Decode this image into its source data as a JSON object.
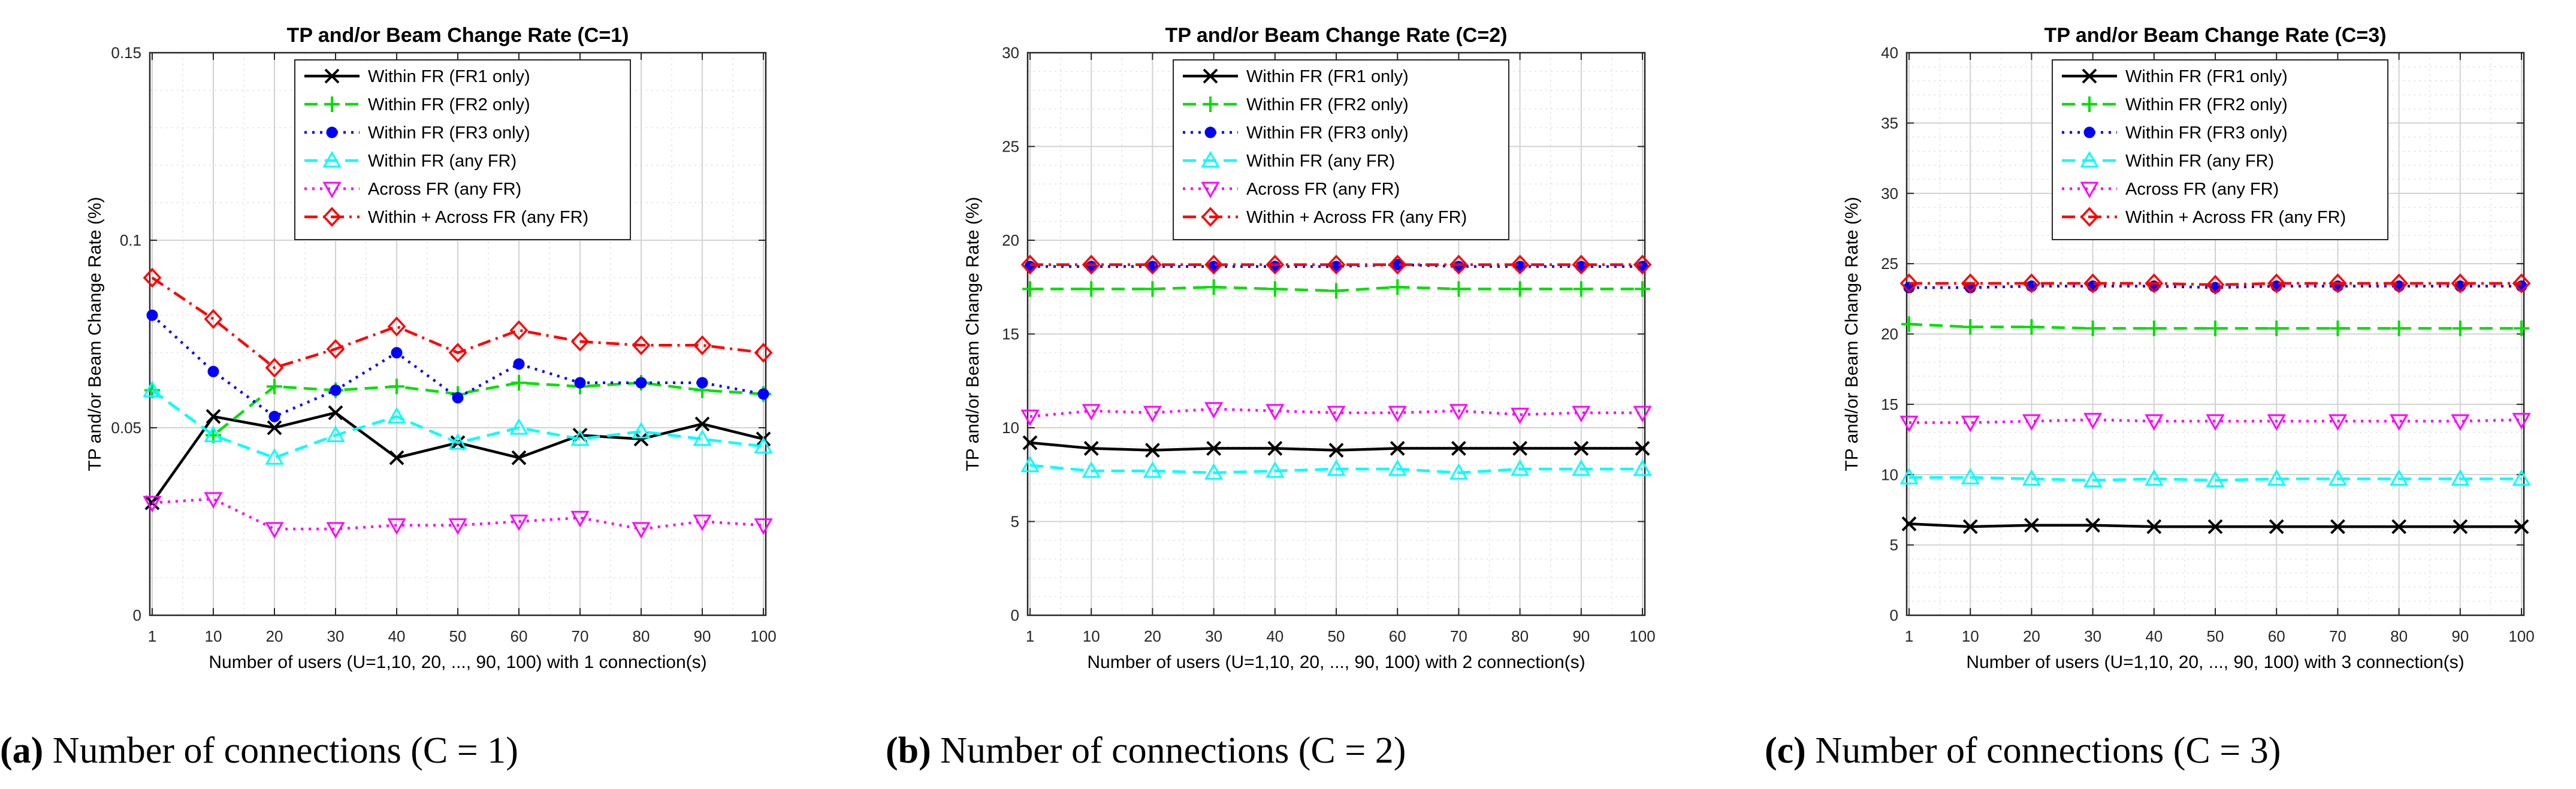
{
  "chart_data": [
    {
      "type": "line",
      "title": "TP and/or Beam Change Rate (C=1)",
      "xlabel": "Number of users (U=1,10, 20, ..., 90, 100) with 1 connection(s)",
      "ylabel": "TP and/or Beam Change Rate (%)",
      "categories": [
        "1",
        "10",
        "20",
        "30",
        "40",
        "50",
        "60",
        "70",
        "80",
        "90",
        "100"
      ],
      "ylim": [
        0,
        0.15
      ],
      "yticks": [
        0,
        0.05,
        0.1,
        0.15
      ],
      "ytick_labels": [
        "0",
        "0.05",
        "0.1",
        "0.15"
      ],
      "grid": true,
      "legend_position": "top-center",
      "series": [
        {
          "name": "Within FR (FR1 only)",
          "color": "#000000",
          "marker": "x",
          "dash": "solid",
          "values": [
            0.03,
            0.053,
            0.05,
            0.054,
            0.042,
            0.046,
            0.042,
            0.048,
            0.047,
            0.051,
            0.047
          ]
        },
        {
          "name": "Within FR (FR2 only)",
          "color": "#00e000",
          "marker": "plus",
          "dash": "dash",
          "values": [
            0.06,
            0.048,
            0.061,
            0.06,
            0.061,
            0.059,
            0.062,
            0.061,
            0.062,
            0.06,
            0.059
          ]
        },
        {
          "name": "Within FR (FR3 only)",
          "color": "#0000ff",
          "marker": "dot",
          "dash": "dot",
          "values": [
            0.08,
            0.065,
            0.053,
            0.06,
            0.07,
            0.058,
            0.067,
            0.062,
            0.062,
            0.062,
            0.059
          ]
        },
        {
          "name": "Within FR (any FR)",
          "color": "#00ffff",
          "marker": "triangle-up",
          "dash": "dash",
          "values": [
            0.06,
            0.048,
            0.042,
            0.048,
            0.053,
            0.046,
            0.05,
            0.047,
            0.049,
            0.047,
            0.045
          ]
        },
        {
          "name": "Across FR (any FR)",
          "color": "#ff00ff",
          "marker": "triangle-down",
          "dash": "dot",
          "values": [
            0.03,
            0.031,
            0.023,
            0.023,
            0.024,
            0.024,
            0.025,
            0.026,
            0.023,
            0.025,
            0.024
          ]
        },
        {
          "name": "Within + Across FR (any FR)",
          "color": "#ff0000",
          "marker": "diamond",
          "dash": "dashdot",
          "values": [
            0.09,
            0.079,
            0.066,
            0.071,
            0.077,
            0.07,
            0.076,
            0.073,
            0.072,
            0.072,
            0.07
          ]
        }
      ]
    },
    {
      "type": "line",
      "title": "TP and/or Beam Change Rate (C=2)",
      "xlabel": "Number of users (U=1,10, 20, ..., 90, 100) with 2 connection(s)",
      "ylabel": "TP and/or Beam Change Rate (%)",
      "categories": [
        "1",
        "10",
        "20",
        "30",
        "40",
        "50",
        "60",
        "70",
        "80",
        "90",
        "100"
      ],
      "ylim": [
        0,
        30
      ],
      "yticks": [
        0,
        5,
        10,
        15,
        20,
        25,
        30
      ],
      "ytick_labels": [
        "0",
        "5",
        "10",
        "15",
        "20",
        "25",
        "30"
      ],
      "grid": true,
      "legend_position": "top-center",
      "series": [
        {
          "name": "Within FR (FR1 only)",
          "color": "#000000",
          "marker": "x",
          "dash": "solid",
          "values": [
            9.2,
            8.9,
            8.8,
            8.9,
            8.9,
            8.8,
            8.9,
            8.9,
            8.9,
            8.9,
            8.9
          ]
        },
        {
          "name": "Within FR (FR2 only)",
          "color": "#00e000",
          "marker": "plus",
          "dash": "dash",
          "values": [
            17.4,
            17.4,
            17.4,
            17.5,
            17.4,
            17.3,
            17.5,
            17.4,
            17.4,
            17.4,
            17.4
          ]
        },
        {
          "name": "Within FR (FR3 only)",
          "color": "#0000ff",
          "marker": "dot",
          "dash": "dot",
          "values": [
            18.6,
            18.6,
            18.6,
            18.6,
            18.6,
            18.6,
            18.7,
            18.6,
            18.6,
            18.6,
            18.6
          ]
        },
        {
          "name": "Within FR (any FR)",
          "color": "#00ffff",
          "marker": "triangle-up",
          "dash": "dash",
          "values": [
            8.0,
            7.7,
            7.7,
            7.6,
            7.7,
            7.8,
            7.8,
            7.6,
            7.8,
            7.8,
            7.8
          ]
        },
        {
          "name": "Across FR (any FR)",
          "color": "#ff00ff",
          "marker": "triangle-down",
          "dash": "dot",
          "values": [
            10.6,
            10.9,
            10.8,
            11.0,
            10.9,
            10.8,
            10.8,
            10.9,
            10.7,
            10.8,
            10.8
          ]
        },
        {
          "name": "Within + Across FR (any FR)",
          "color": "#ff0000",
          "marker": "diamond",
          "dash": "dashdot",
          "values": [
            18.7,
            18.7,
            18.7,
            18.7,
            18.7,
            18.7,
            18.7,
            18.7,
            18.7,
            18.7,
            18.7
          ]
        }
      ]
    },
    {
      "type": "line",
      "title": "TP and/or Beam Change Rate (C=3)",
      "xlabel": "Number of users (U=1,10, 20, ..., 90, 100) with 3 connection(s)",
      "ylabel": "TP and/or Beam Change Rate (%)",
      "categories": [
        "1",
        "10",
        "20",
        "30",
        "40",
        "50",
        "60",
        "70",
        "80",
        "90",
        "100"
      ],
      "ylim": [
        0,
        40
      ],
      "yticks": [
        0,
        5,
        10,
        15,
        20,
        25,
        30,
        35,
        40
      ],
      "ytick_labels": [
        "0",
        "5",
        "10",
        "15",
        "20",
        "25",
        "30",
        "35",
        "40"
      ],
      "grid": true,
      "legend_position": "top-center",
      "series": [
        {
          "name": "Within FR (FR1 only)",
          "color": "#000000",
          "marker": "x",
          "dash": "solid",
          "values": [
            6.5,
            6.3,
            6.4,
            6.4,
            6.3,
            6.3,
            6.3,
            6.3,
            6.3,
            6.3,
            6.3
          ]
        },
        {
          "name": "Within FR (FR2 only)",
          "color": "#00e000",
          "marker": "plus",
          "dash": "dash",
          "values": [
            20.7,
            20.5,
            20.5,
            20.4,
            20.4,
            20.4,
            20.4,
            20.4,
            20.4,
            20.4,
            20.4
          ]
        },
        {
          "name": "Within FR (FR3 only)",
          "color": "#0000ff",
          "marker": "dot",
          "dash": "dot",
          "values": [
            23.3,
            23.3,
            23.4,
            23.4,
            23.4,
            23.3,
            23.4,
            23.4,
            23.4,
            23.4,
            23.4
          ]
        },
        {
          "name": "Within FR (any FR)",
          "color": "#00ffff",
          "marker": "triangle-up",
          "dash": "dash",
          "values": [
            9.8,
            9.8,
            9.7,
            9.6,
            9.7,
            9.6,
            9.7,
            9.7,
            9.7,
            9.7,
            9.7
          ]
        },
        {
          "name": "Across FR (any FR)",
          "color": "#ff00ff",
          "marker": "triangle-down",
          "dash": "dot",
          "values": [
            13.7,
            13.7,
            13.8,
            13.9,
            13.8,
            13.8,
            13.8,
            13.8,
            13.8,
            13.8,
            13.9
          ]
        },
        {
          "name": "Within + Across FR (any FR)",
          "color": "#ff0000",
          "marker": "diamond",
          "dash": "dashdot",
          "values": [
            23.6,
            23.6,
            23.6,
            23.6,
            23.6,
            23.5,
            23.6,
            23.6,
            23.6,
            23.6,
            23.6
          ]
        }
      ]
    }
  ],
  "captions": [
    {
      "label": "(a)",
      "text": " Number of connections (C = 1)"
    },
    {
      "label": "(b)",
      "text": " Number of connections (C = 2)"
    },
    {
      "label": "(c)",
      "text": " Number of connections (C = 3)"
    }
  ]
}
